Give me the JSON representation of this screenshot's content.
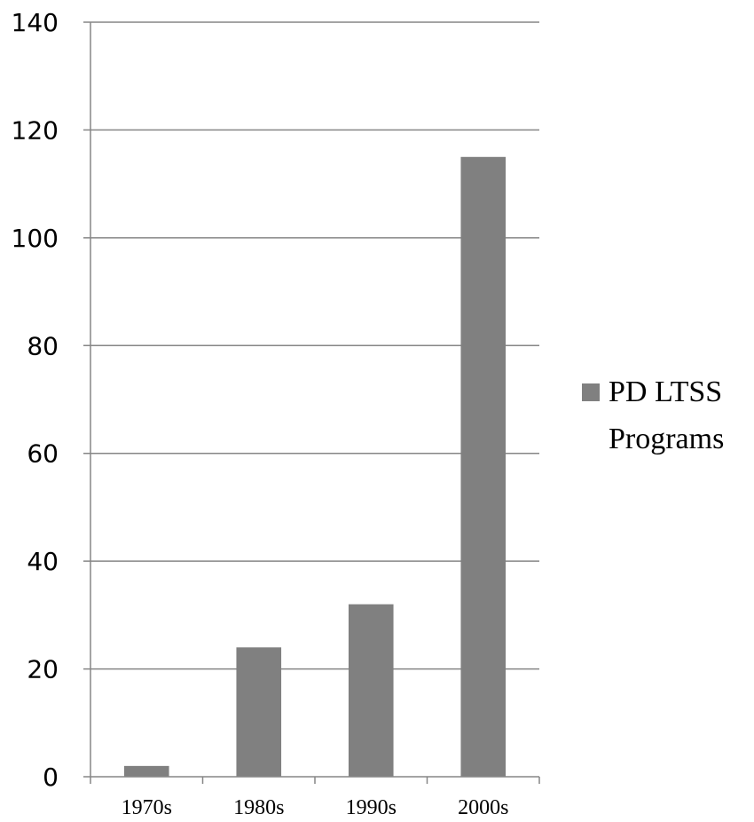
{
  "chart_data": {
    "type": "bar",
    "categories": [
      "1970s",
      "1980s",
      "1990s",
      "2000s"
    ],
    "series": [
      {
        "name": "PD LTSS Programs",
        "values": [
          2,
          24,
          32,
          115
        ]
      }
    ],
    "ylim": [
      0,
      140
    ],
    "y_ticks": [
      0,
      20,
      40,
      60,
      80,
      100,
      120,
      140
    ],
    "grid": true,
    "legend_position": "right",
    "bar_color": "#808080",
    "grid_color": "#868686",
    "axis_color": "#868686"
  },
  "legend": {
    "line1": "PD LTSS",
    "line2": "Programs"
  }
}
